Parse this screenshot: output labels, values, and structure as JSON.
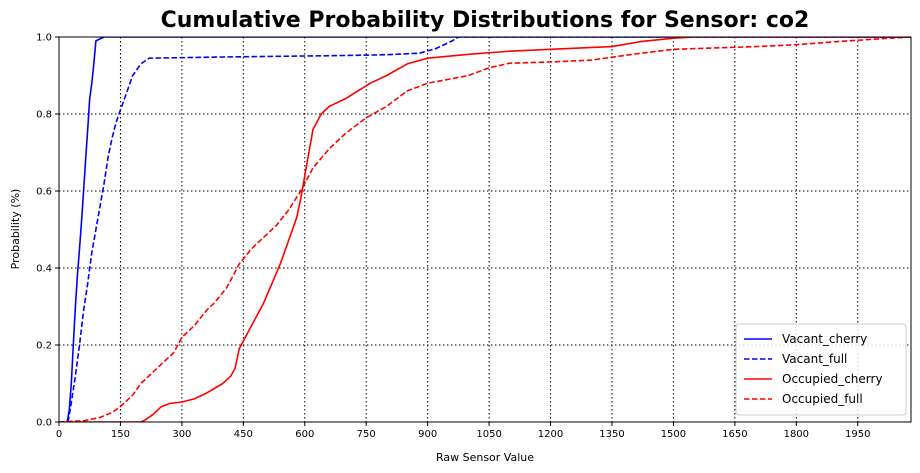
{
  "chart_data": {
    "type": "line",
    "title": "Cumulative Probability Distributions for Sensor: co2",
    "xlabel": "Raw Sensor Value",
    "ylabel": "Probability (%)",
    "xlim": [
      0,
      2080
    ],
    "ylim": [
      0,
      1.0
    ],
    "xticks": [
      0,
      150,
      300,
      450,
      600,
      750,
      900,
      1050,
      1200,
      1350,
      1500,
      1650,
      1800,
      1950
    ],
    "xtick_labels": [
      "0",
      "150",
      "300",
      "450",
      "600",
      "750",
      "900",
      "1050",
      "1200",
      "1350",
      "1500",
      "1650",
      "1800",
      "1950"
    ],
    "yticks": [
      0.0,
      0.2,
      0.4,
      0.6,
      0.8,
      1.0
    ],
    "ytick_labels": [
      "0.0",
      "0.2",
      "0.4",
      "0.6",
      "0.8",
      "1.0"
    ],
    "grid": true,
    "grid_style": "dotted",
    "legend_position": "lower-right",
    "series": [
      {
        "name": "Vacant_cherry",
        "color": "#0000ff",
        "dash": "solid",
        "points": [
          [
            20,
            0
          ],
          [
            25,
            0.03
          ],
          [
            30,
            0.1
          ],
          [
            35,
            0.2
          ],
          [
            40,
            0.3
          ],
          [
            45,
            0.38
          ],
          [
            50,
            0.45
          ],
          [
            55,
            0.52
          ],
          [
            60,
            0.6
          ],
          [
            65,
            0.68
          ],
          [
            70,
            0.76
          ],
          [
            75,
            0.84
          ],
          [
            80,
            0.88
          ],
          [
            85,
            0.93
          ],
          [
            90,
            0.99
          ],
          [
            100,
            0.995
          ],
          [
            110,
            1.0
          ],
          [
            2080,
            1.0
          ]
        ]
      },
      {
        "name": "Vacant_full",
        "color": "#0000ff",
        "dash": "dashed",
        "points": [
          [
            22,
            0
          ],
          [
            30,
            0.05
          ],
          [
            40,
            0.12
          ],
          [
            50,
            0.2
          ],
          [
            60,
            0.29
          ],
          [
            70,
            0.36
          ],
          [
            80,
            0.44
          ],
          [
            90,
            0.5
          ],
          [
            100,
            0.56
          ],
          [
            110,
            0.62
          ],
          [
            120,
            0.69
          ],
          [
            130,
            0.74
          ],
          [
            140,
            0.78
          ],
          [
            150,
            0.81
          ],
          [
            160,
            0.84
          ],
          [
            170,
            0.87
          ],
          [
            180,
            0.9
          ],
          [
            200,
            0.93
          ],
          [
            220,
            0.945
          ],
          [
            400,
            0.948
          ],
          [
            700,
            0.952
          ],
          [
            800,
            0.954
          ],
          [
            880,
            0.958
          ],
          [
            920,
            0.97
          ],
          [
            960,
            0.99
          ],
          [
            975,
            1.0
          ],
          [
            2080,
            1.0
          ]
        ]
      },
      {
        "name": "Occupied_cherry",
        "color": "#ff0000",
        "dash": "solid",
        "points": [
          [
            0,
            0
          ],
          [
            200,
            0
          ],
          [
            210,
            0.005
          ],
          [
            230,
            0.02
          ],
          [
            250,
            0.04
          ],
          [
            270,
            0.048
          ],
          [
            300,
            0.052
          ],
          [
            330,
            0.06
          ],
          [
            360,
            0.075
          ],
          [
            400,
            0.1
          ],
          [
            420,
            0.12
          ],
          [
            430,
            0.14
          ],
          [
            440,
            0.19
          ],
          [
            460,
            0.23
          ],
          [
            480,
            0.27
          ],
          [
            500,
            0.31
          ],
          [
            520,
            0.36
          ],
          [
            540,
            0.41
          ],
          [
            560,
            0.47
          ],
          [
            580,
            0.53
          ],
          [
            590,
            0.58
          ],
          [
            600,
            0.64
          ],
          [
            610,
            0.7
          ],
          [
            620,
            0.76
          ],
          [
            640,
            0.8
          ],
          [
            660,
            0.82
          ],
          [
            700,
            0.84
          ],
          [
            760,
            0.88
          ],
          [
            800,
            0.9
          ],
          [
            850,
            0.93
          ],
          [
            900,
            0.945
          ],
          [
            1000,
            0.955
          ],
          [
            1100,
            0.963
          ],
          [
            1200,
            0.968
          ],
          [
            1350,
            0.975
          ],
          [
            1420,
            0.988
          ],
          [
            1500,
            0.997
          ],
          [
            1550,
            1.0
          ],
          [
            2080,
            1.0
          ]
        ]
      },
      {
        "name": "Occupied_full",
        "color": "#ff0000",
        "dash": "dashed",
        "points": [
          [
            0,
            0
          ],
          [
            60,
            0.003
          ],
          [
            100,
            0.012
          ],
          [
            130,
            0.025
          ],
          [
            150,
            0.04
          ],
          [
            180,
            0.07
          ],
          [
            200,
            0.1
          ],
          [
            240,
            0.14
          ],
          [
            280,
            0.18
          ],
          [
            300,
            0.22
          ],
          [
            330,
            0.25
          ],
          [
            360,
            0.29
          ],
          [
            380,
            0.31
          ],
          [
            410,
            0.35
          ],
          [
            440,
            0.41
          ],
          [
            470,
            0.45
          ],
          [
            500,
            0.48
          ],
          [
            530,
            0.51
          ],
          [
            560,
            0.55
          ],
          [
            590,
            0.6
          ],
          [
            620,
            0.66
          ],
          [
            660,
            0.71
          ],
          [
            700,
            0.75
          ],
          [
            750,
            0.79
          ],
          [
            800,
            0.82
          ],
          [
            850,
            0.86
          ],
          [
            900,
            0.88
          ],
          [
            950,
            0.89
          ],
          [
            1000,
            0.9
          ],
          [
            1050,
            0.92
          ],
          [
            1100,
            0.932
          ],
          [
            1200,
            0.935
          ],
          [
            1300,
            0.94
          ],
          [
            1400,
            0.955
          ],
          [
            1500,
            0.968
          ],
          [
            1700,
            0.975
          ],
          [
            1800,
            0.98
          ],
          [
            1900,
            0.988
          ],
          [
            2000,
            0.995
          ],
          [
            2080,
            1.0
          ]
        ]
      }
    ]
  }
}
